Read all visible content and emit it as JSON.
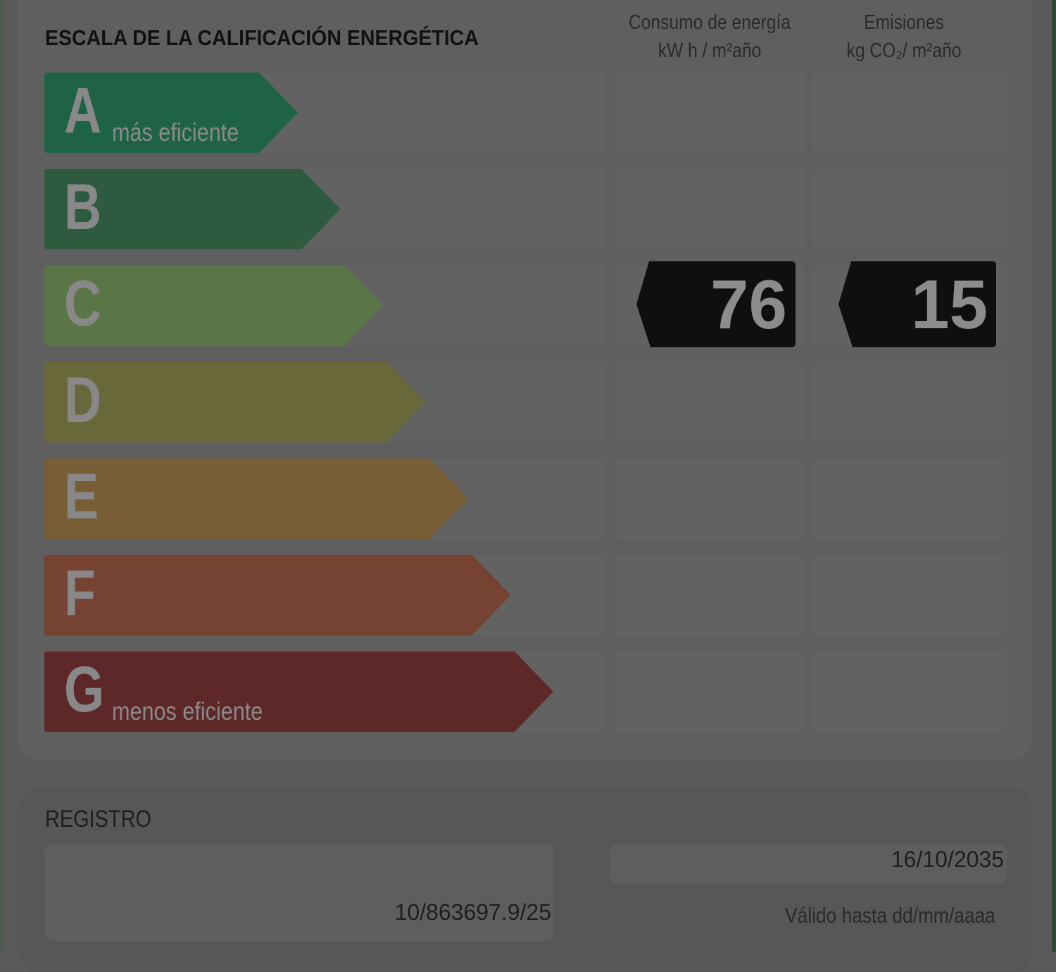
{
  "title": "ESCALA DE LA CALIFICACIÓN ENERGÉTICA",
  "columns": {
    "energy": {
      "line1": "Consumo de energía",
      "line2": "kW h / m²año"
    },
    "emissions": {
      "line1": "Emisiones",
      "line2": "kg CO₂/ m²año"
    }
  },
  "classes": [
    {
      "letter": "A",
      "label": "más eficiente",
      "color": "#1f6347"
    },
    {
      "letter": "B",
      "label": "",
      "color": "#2e5a40"
    },
    {
      "letter": "C",
      "label": "",
      "color": "#5a7646"
    },
    {
      "letter": "D",
      "label": "",
      "color": "#68683a"
    },
    {
      "letter": "E",
      "label": "",
      "color": "#785e36"
    },
    {
      "letter": "F",
      "label": "",
      "color": "#764232"
    },
    {
      "letter": "G",
      "label": "menos eficiente",
      "color": "#5e2829"
    }
  ],
  "rating": {
    "class": "C",
    "energy_value": "76",
    "emissions_value": "15"
  },
  "registro": {
    "label": "REGISTRO",
    "number": "10/863697.9/25",
    "date": "16/10/2035",
    "valid_label": "Válido hasta dd/mm/aaaa"
  }
}
